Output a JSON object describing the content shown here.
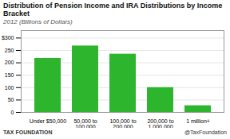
{
  "chart_data": {
    "type": "bar",
    "title": "Distribution of Pension Income and IRA Distributions by Income Bracket",
    "subtitle": "2012 (Billions of Dollars)",
    "annotations": [
      "TAX FOUNDATION",
      "@TaxFoundation"
    ],
    "categories": [
      "Under $50,000",
      "50,000 to\n100,000",
      "100,000 to\n200,000",
      "200,000 to\n1,000,000",
      "1 million+"
    ],
    "values": [
      218,
      268,
      235,
      100,
      27
    ],
    "color": "#2db52d",
    "ylim": [
      0,
      330
    ],
    "yticks": [
      0,
      50,
      100,
      150,
      200,
      250,
      {
        "value": 300,
        "label": "$300"
      }
    ],
    "grid": true
  }
}
